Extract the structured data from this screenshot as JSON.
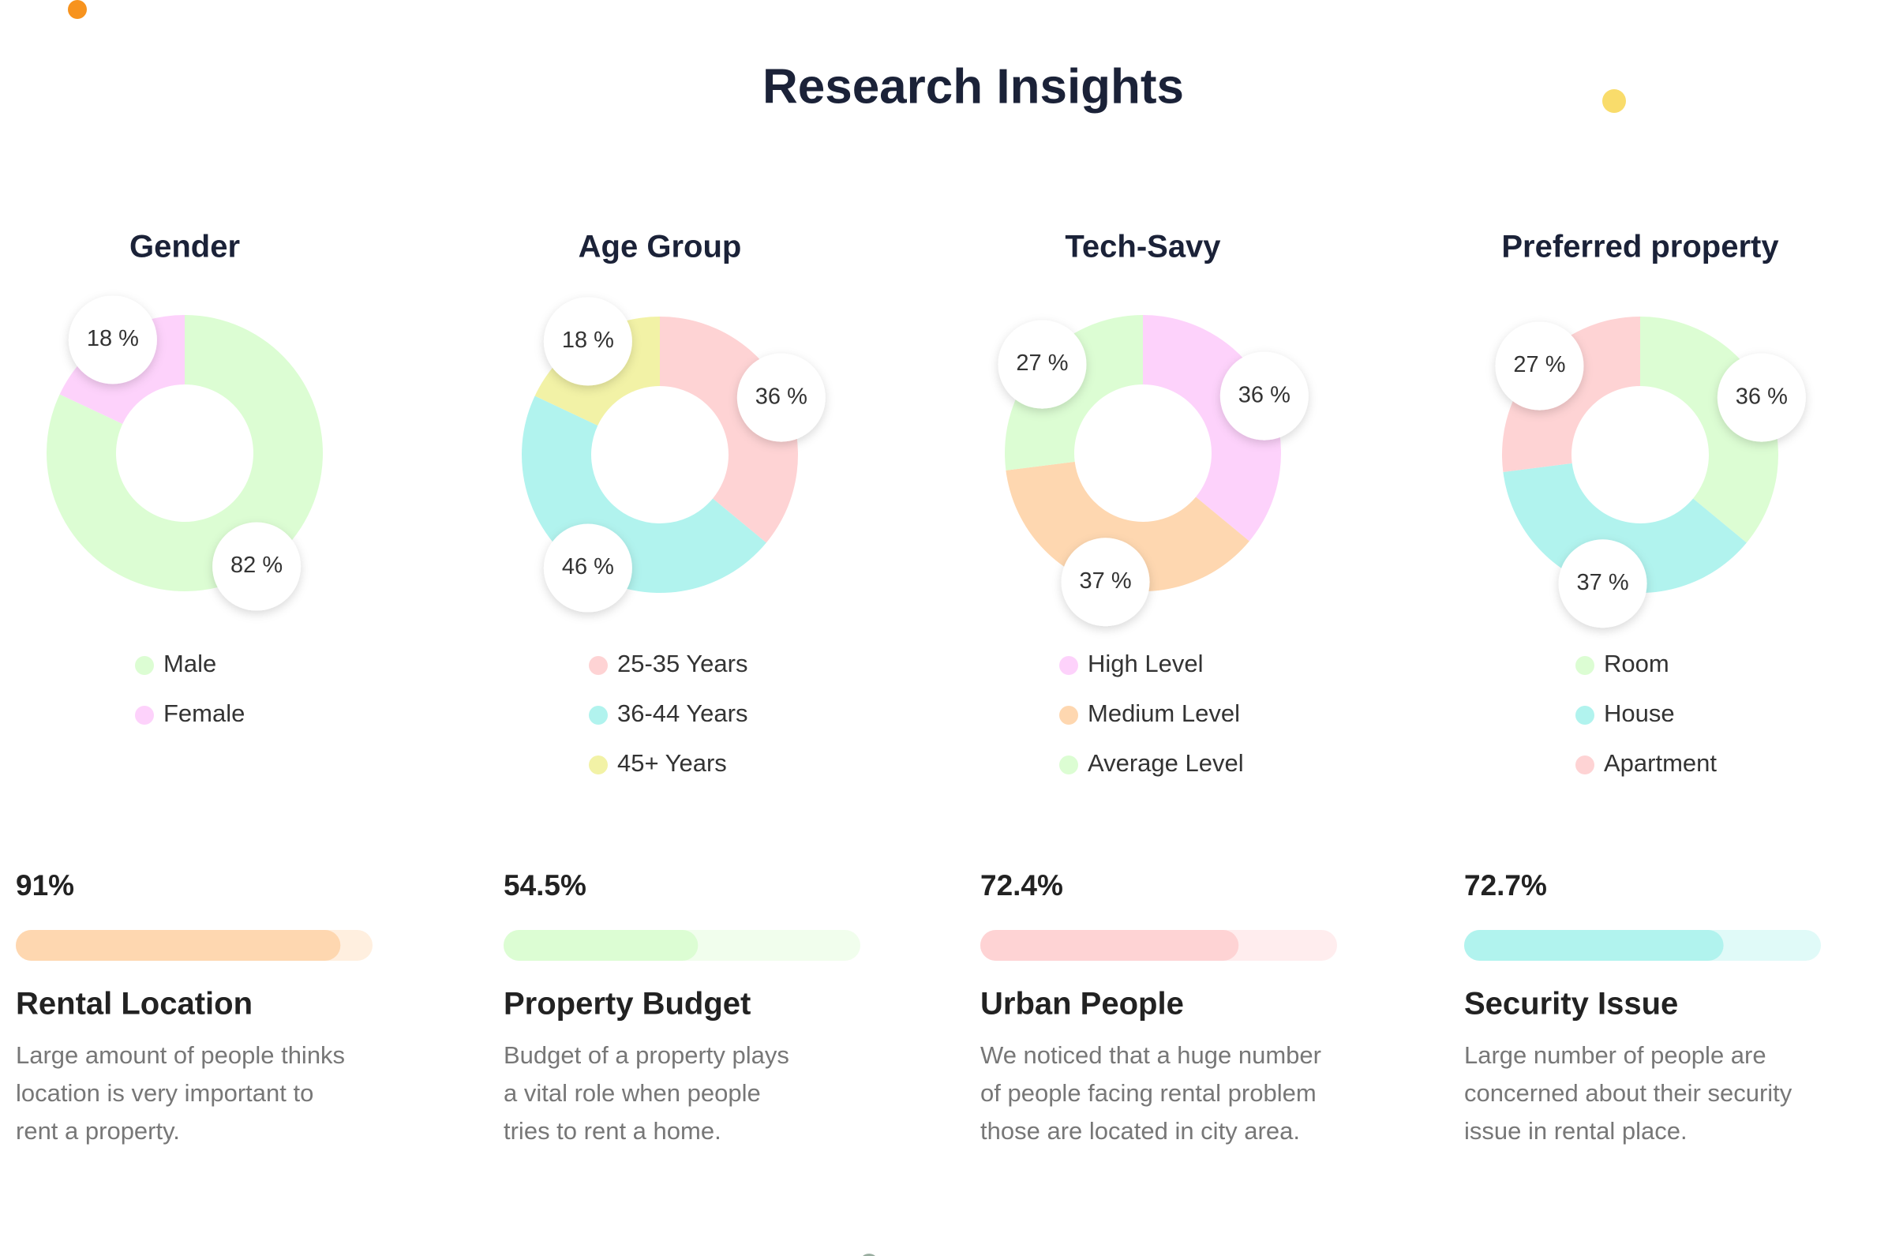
{
  "title": "Research Insights",
  "chart_data": [
    {
      "type": "pie",
      "title": "Gender",
      "categories": [
        "Male",
        "Female"
      ],
      "values": [
        82,
        18
      ],
      "value_labels": [
        "82 %",
        "18 %"
      ],
      "colors": [
        "#dcfdd3",
        "#fdd2fb"
      ]
    },
    {
      "type": "pie",
      "title": "Age Group",
      "categories": [
        "25-35 Years",
        "36-44 Years",
        "45+ Years"
      ],
      "values": [
        36,
        46,
        18
      ],
      "value_labels": [
        "36 %",
        "46 %",
        "18 %"
      ],
      "colors": [
        "#fed3d4",
        "#b1f3ee",
        "#f2f2a6"
      ]
    },
    {
      "type": "pie",
      "title": "Tech-Savy",
      "categories": [
        "High Level",
        "Medium Level",
        "Average Level"
      ],
      "values": [
        36,
        37,
        27
      ],
      "value_labels": [
        "36 %",
        "37 %",
        "27 %"
      ],
      "colors": [
        "#fdd2fb",
        "#fed7b0",
        "#dcfdd3"
      ]
    },
    {
      "type": "pie",
      "title": "Preferred property",
      "categories": [
        "Room",
        "House",
        "Apartment"
      ],
      "values": [
        36,
        37,
        27
      ],
      "value_labels": [
        "36 %",
        "37 %",
        "27 %"
      ],
      "colors": [
        "#dcfdd3",
        "#b1f3ee",
        "#fed3d4"
      ]
    }
  ],
  "stats": [
    {
      "value": 91,
      "value_label": "91%",
      "color": "#fed7b0",
      "title": "Rental Location",
      "lines": [
        "Large amount of people thinks",
        "location is very important to",
        "rent a property."
      ]
    },
    {
      "value": 54.5,
      "value_label": "54.5%",
      "color": "#dcfdd3",
      "title": "Property Budget",
      "lines": [
        "Budget of a property plays",
        "a vital role when people",
        "tries to rent a home."
      ]
    },
    {
      "value": 72.4,
      "value_label": "72.4%",
      "color": "#fed3d4",
      "title": "Urban People",
      "lines": [
        "We noticed that a huge number",
        "of people facing rental problem",
        "those are located in city area."
      ]
    },
    {
      "value": 72.7,
      "value_label": "72.7%",
      "color": "#b1f3ee",
      "title": "Security Issue",
      "lines": [
        "Large number of people are",
        "concerned about their security",
        "issue in rental place."
      ]
    }
  ]
}
